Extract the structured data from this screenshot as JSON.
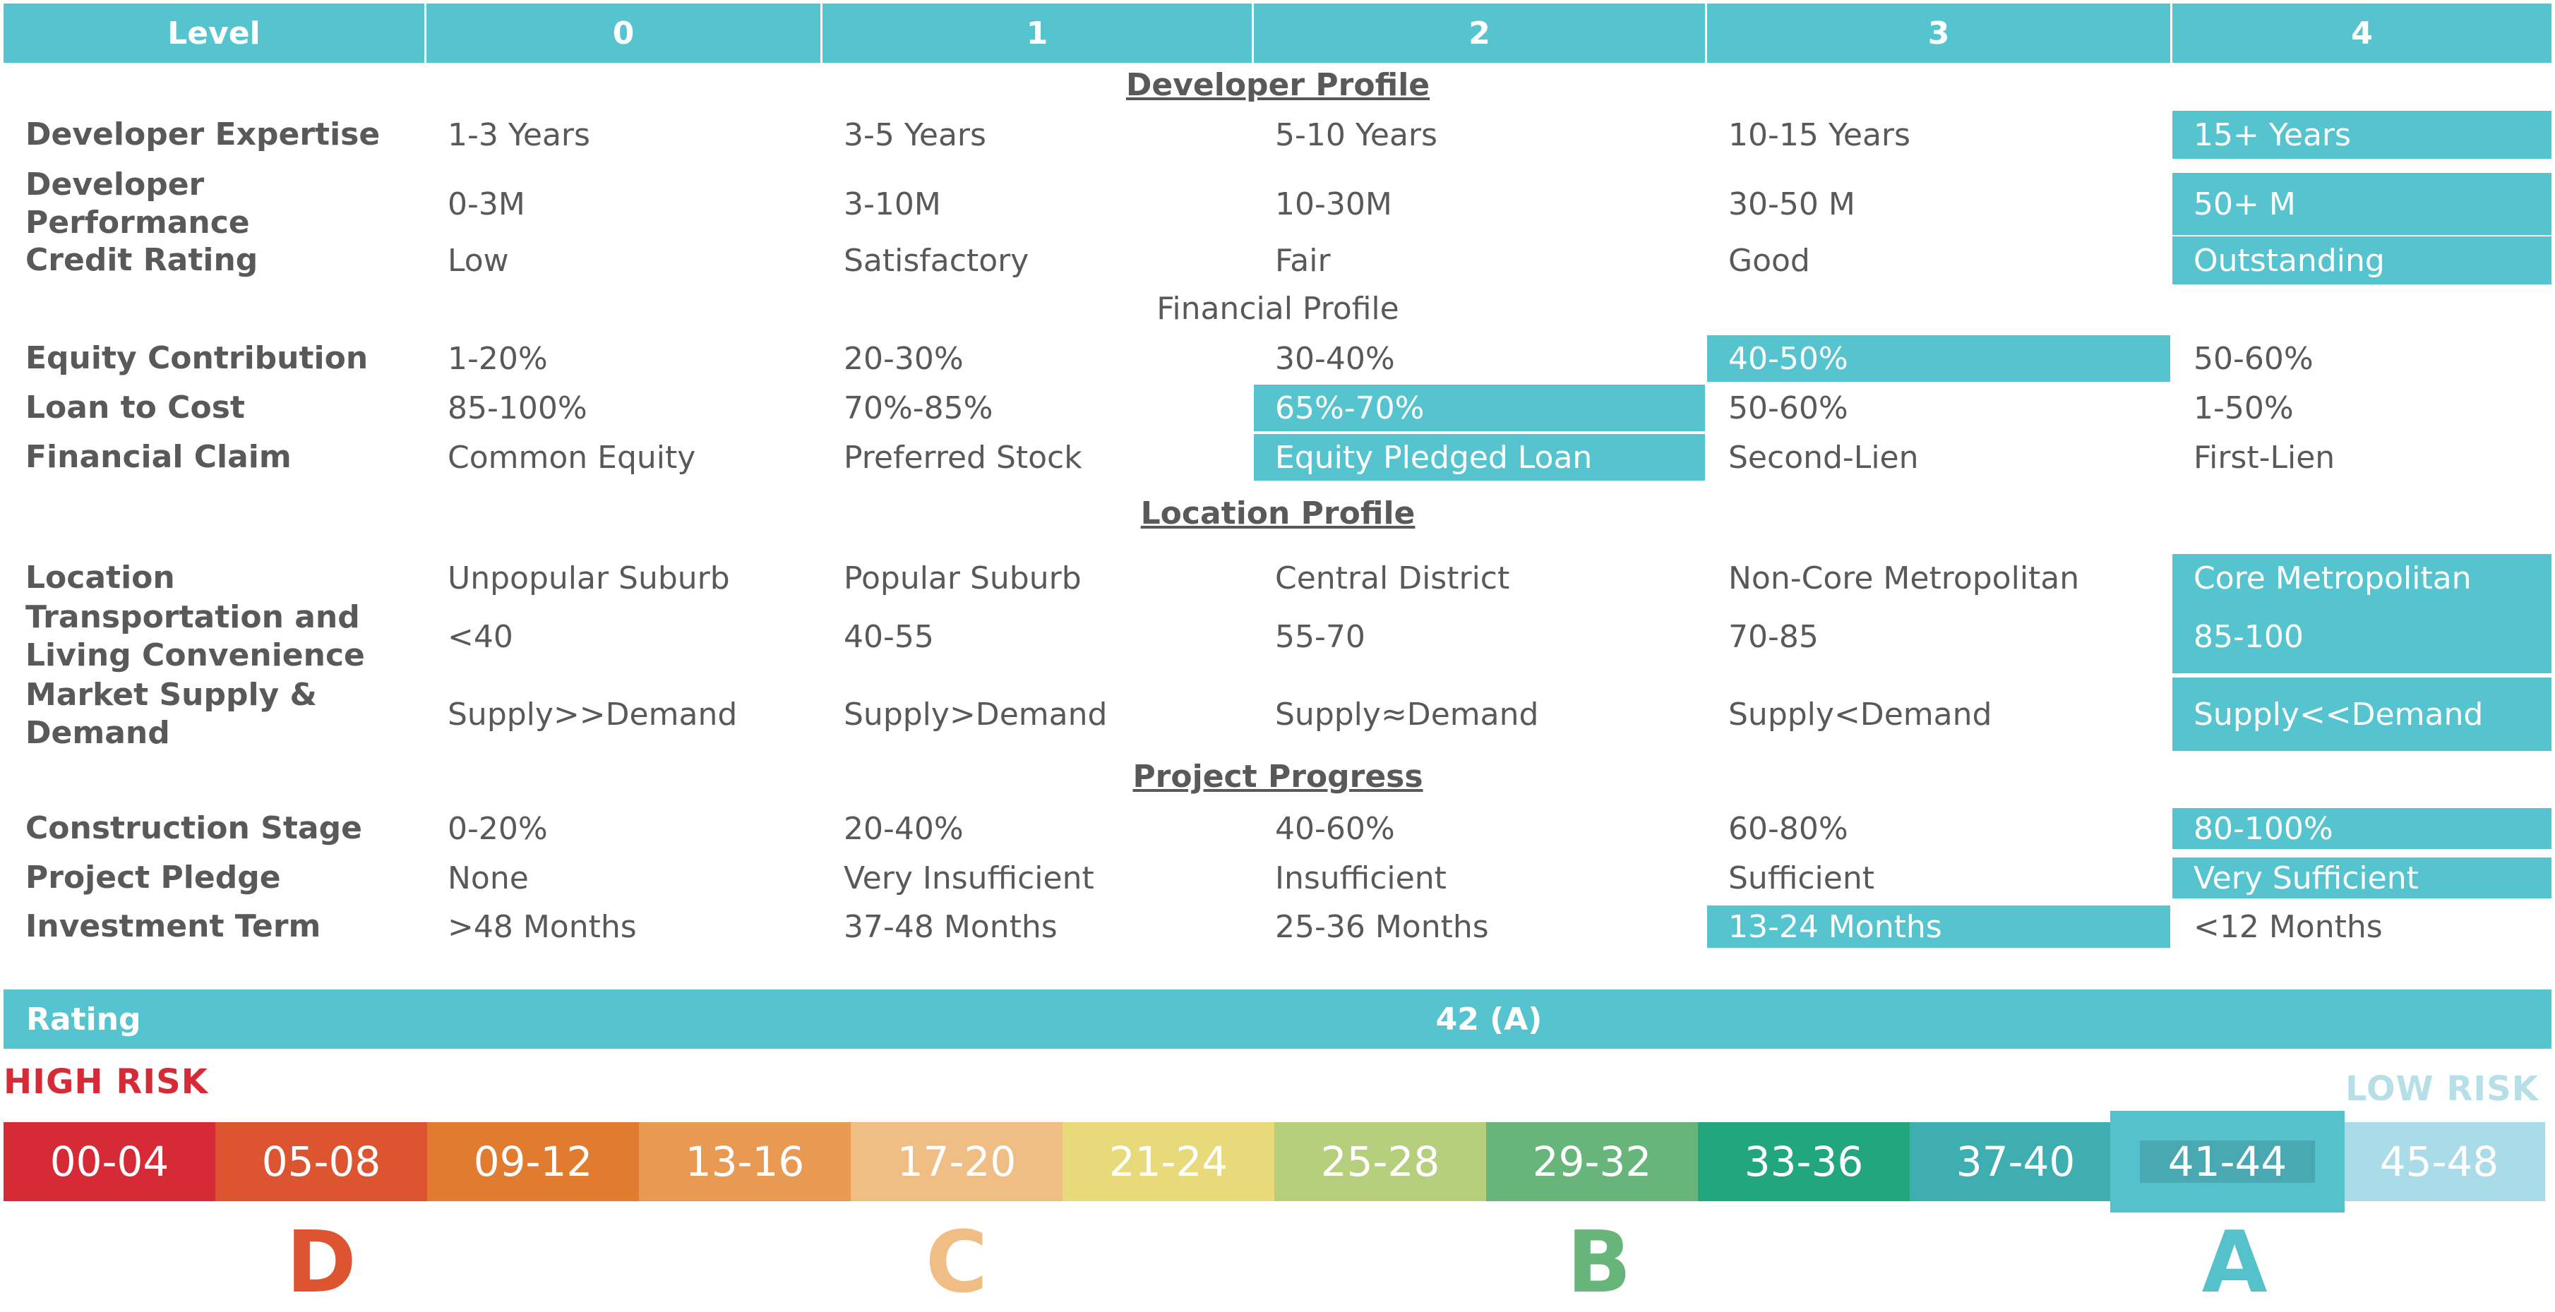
{
  "header": {
    "level_label": "Level",
    "levels": [
      "0",
      "1",
      "2",
      "3",
      "4"
    ]
  },
  "sections": {
    "developer": "Developer Profile",
    "financial": "Financial Profile",
    "location": "Location Profile",
    "progress": "Project Progress"
  },
  "rows": [
    {
      "label": "Developer Expertise",
      "cells": [
        "1-3 Years",
        "3-5 Years",
        "5-10 Years",
        "10-15 Years",
        "15+  Years"
      ],
      "selected": 4
    },
    {
      "label": "Developer Performance",
      "cells": [
        "0-3M",
        "3-10M",
        "10-30M",
        "30-50 M",
        "50+ M"
      ],
      "selected": 4
    },
    {
      "label": "Credit Rating",
      "cells": [
        "Low",
        "Satisfactory",
        "Fair",
        "Good",
        "Outstanding"
      ],
      "selected": 4
    },
    {
      "label": "Equity Contribution",
      "cells": [
        "1-20%",
        "20-30%",
        "30-40%",
        "40-50%",
        "50-60%"
      ],
      "selected": 3
    },
    {
      "label": "Loan to Cost",
      "cells": [
        "85-100%",
        "70%-85%",
        "65%-70%",
        "50-60%",
        "1-50%"
      ],
      "selected": 2
    },
    {
      "label": "Financial Claim",
      "cells": [
        "Common Equity",
        "Preferred Stock",
        "Equity Pledged Loan",
        "Second-Lien",
        "First-Lien"
      ],
      "selected": 2
    },
    {
      "label": "Location",
      "cells": [
        "Unpopular Suburb",
        "Popular Suburb",
        "Central District",
        "Non-Core Metropolitan",
        "Core Metropolitan"
      ],
      "selected": 4
    },
    {
      "label": "Transportation and Living Convenience",
      "cells": [
        "<40",
        "40-55",
        "55-70",
        "70-85",
        "85-100"
      ],
      "selected": 4
    },
    {
      "label": "Market Supply & Demand",
      "cells": [
        "Supply>>Demand",
        "Supply>Demand",
        "Supply≈Demand",
        "Supply<Demand",
        "Supply<<Demand"
      ],
      "selected": 4
    },
    {
      "label": "Construction Stage",
      "cells": [
        "0-20%",
        "20-40%",
        "40-60%",
        "60-80%",
        "80-100%"
      ],
      "selected": 4
    },
    {
      "label": "Project Pledge",
      "cells": [
        "None",
        "Very Insufficient",
        "Insufficient",
        "Sufficient",
        "Very Sufficient"
      ],
      "selected": 4
    },
    {
      "label": "Investment Term",
      "cells": [
        ">48 Months",
        "37-48 Months",
        "25-36 Months",
        "13-24 Months",
        "<12 Months"
      ],
      "selected": 3
    }
  ],
  "rating": {
    "label": "Rating",
    "value": "42 (A)"
  },
  "scale": {
    "high_risk": "HIGH RISK",
    "low_risk": "LOW RISK",
    "segments": [
      {
        "label": "00-04",
        "color": "#d62b37"
      },
      {
        "label": "05-08",
        "color": "#dd5530"
      },
      {
        "label": "09-12",
        "color": "#e07b30"
      },
      {
        "label": "13-16",
        "color": "#e89a53"
      },
      {
        "label": "17-20",
        "color": "#f0bd85"
      },
      {
        "label": "21-24",
        "color": "#e8d97a"
      },
      {
        "label": "25-28",
        "color": "#b5cf7d"
      },
      {
        "label": "29-32",
        "color": "#67b57a"
      },
      {
        "label": "33-36",
        "color": "#22a67d"
      },
      {
        "label": "37-40",
        "color": "#3eaeb0"
      },
      {
        "label": "41-44",
        "color": "#55c1cb"
      },
      {
        "label": "45-48",
        "color": "#a9dbe8"
      }
    ],
    "selected_segment": 10,
    "grades": [
      {
        "letter": "D",
        "color": "#dd5530"
      },
      {
        "letter": "C",
        "color": "#f0bd85"
      },
      {
        "letter": "B",
        "color": "#67b57a"
      },
      {
        "letter": "A",
        "color": "#55c1cb"
      }
    ]
  }
}
